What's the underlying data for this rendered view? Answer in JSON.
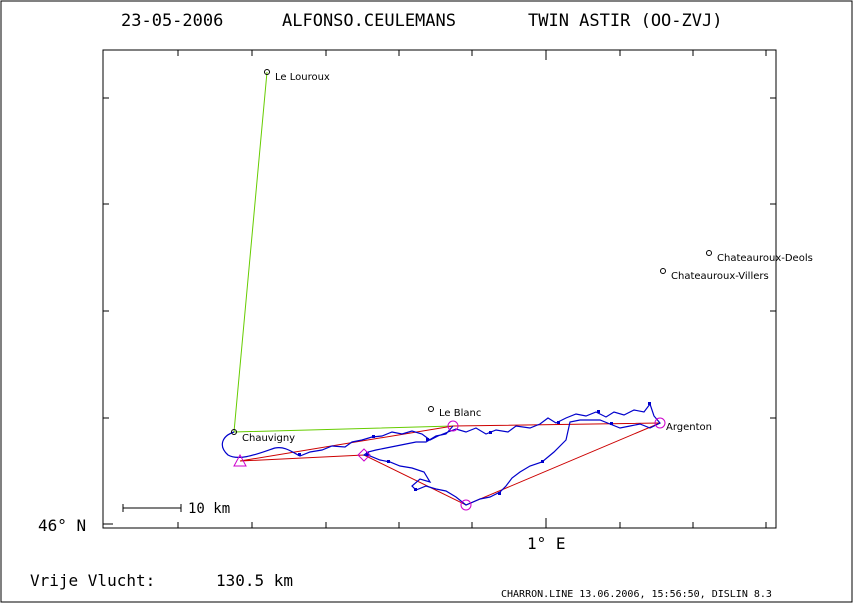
{
  "header": {
    "date": "23-05-2006",
    "pilot": "ALFONSO.CEULEMANS",
    "glider": "TWIN ASTIR (OO-ZVJ)"
  },
  "axes": {
    "lat_label": "46° N",
    "lon_label": "1° E"
  },
  "scale_bar": {
    "label": "10 km"
  },
  "places": {
    "le_louroux": "Le Louroux",
    "chateauroux_deols": "Chateauroux-Deols",
    "chateauroux_villers": "Chateauroux-Villers",
    "le_blanc": "Le Blanc",
    "chauvigny": "Chauvigny",
    "argenton": "Argenton"
  },
  "footer": {
    "distance_label": "Vrije Vlucht:",
    "distance_value": "130.5 km",
    "credits": "CHARRON.LINE 13.06.2006, 15:56:50, DISLIN 8.3"
  },
  "colors": {
    "frame": "#000000",
    "track": "#0000cc",
    "task_line": "#cc0000",
    "declared_line": "#66cc00",
    "turnpoint": "#cc00cc",
    "background": "#ffffff"
  }
}
